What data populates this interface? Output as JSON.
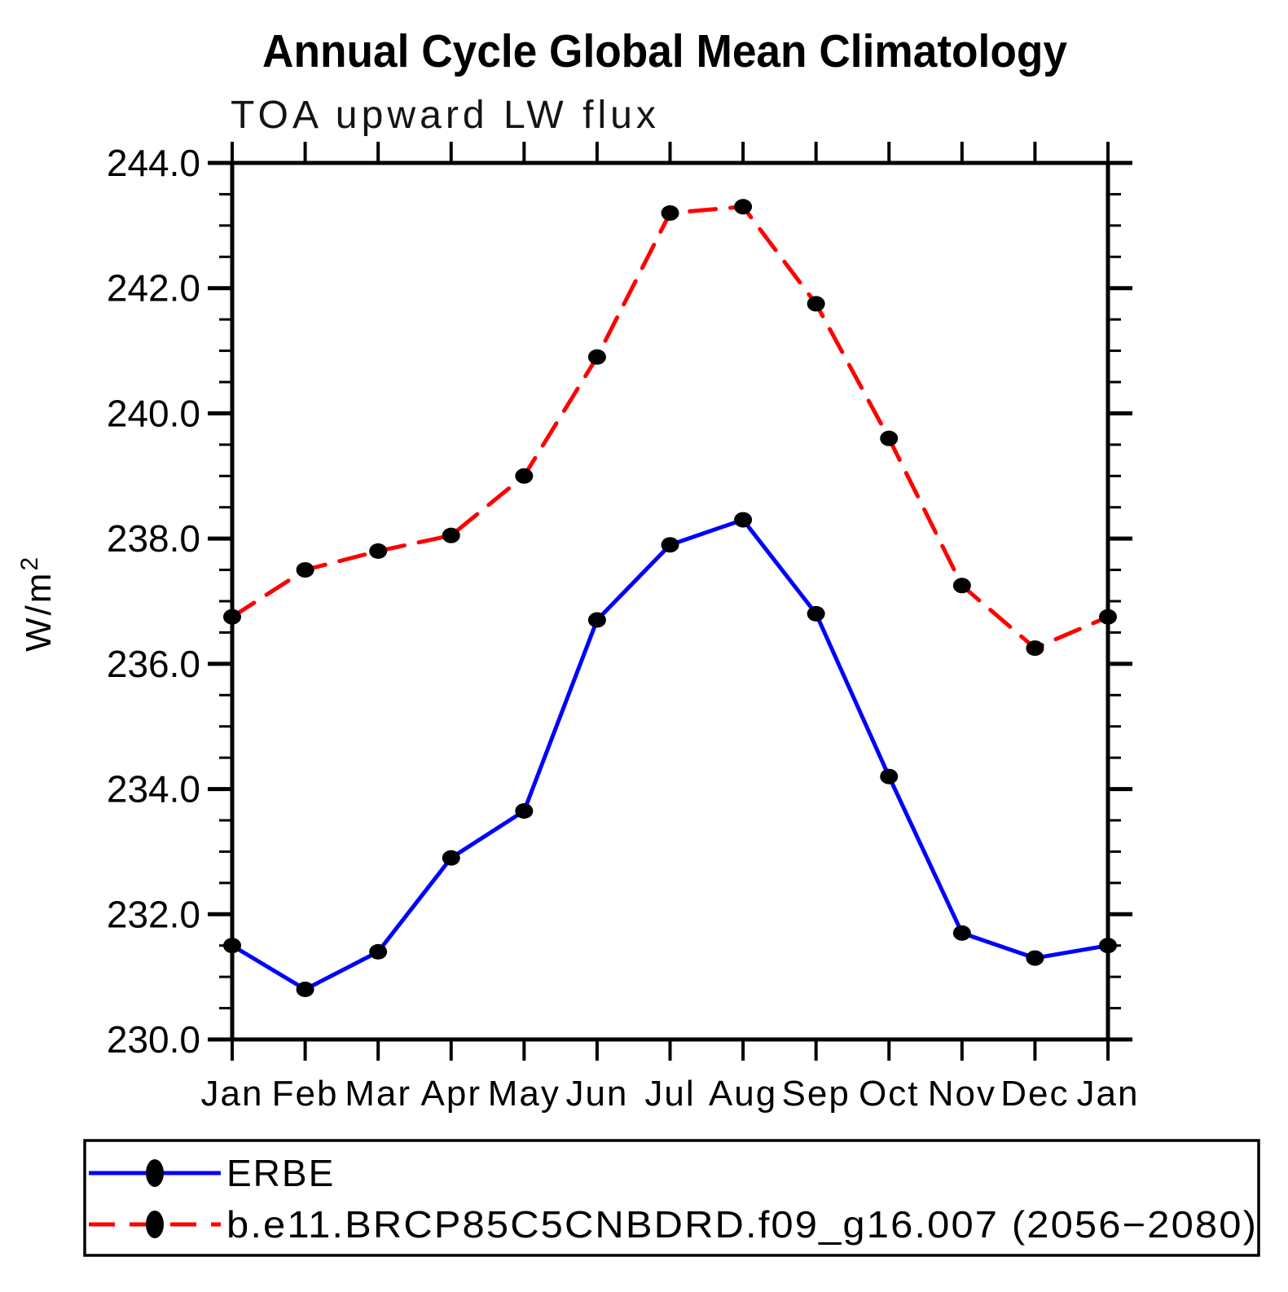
{
  "header": {
    "title": "Annual Cycle Global Mean Climatology",
    "subtitle": "TOA upward LW flux"
  },
  "axes": {
    "y": {
      "unit_base": "W/m",
      "unit_exponent": "2",
      "tick_labels": [
        "244.0",
        "242.0",
        "240.0",
        "238.0",
        "236.0",
        "234.0",
        "232.0",
        "230.0"
      ]
    },
    "x": {
      "tick_labels": [
        "Jan",
        "Feb",
        "Mar",
        "Apr",
        "May",
        "Jun",
        "Jul",
        "Aug",
        "Sep",
        "Oct",
        "Nov",
        "Dec",
        "Jan"
      ]
    }
  },
  "legend": {
    "entries": [
      {
        "label": "ERBE",
        "line_style": "solid",
        "color": "#0000ff",
        "marker_color": "#000000"
      },
      {
        "label": "b.e11.BRCP85C5CNBDRD.f09_g16.007 (2056−2080)",
        "line_style": "dashed",
        "color": "#ff0000",
        "marker_color": "#000000"
      }
    ]
  },
  "colors": {
    "axis": "#000000",
    "background": "#ffffff",
    "erbe_line": "#0000ff",
    "model_line": "#ff0000",
    "marker": "#000000"
  },
  "chart_data": {
    "type": "line",
    "title": "Annual Cycle Global Mean Climatology",
    "subtitle": "TOA upward LW flux",
    "ylabel": "W/m²",
    "xlabel": "",
    "x_categories": [
      "Jan",
      "Feb",
      "Mar",
      "Apr",
      "May",
      "Jun",
      "Jul",
      "Aug",
      "Sep",
      "Oct",
      "Nov",
      "Dec",
      "Jan"
    ],
    "ylim": [
      230.0,
      244.0
    ],
    "ytick_major_interval": 2.0,
    "ytick_minor_interval": 0.5,
    "ytick_labels": [
      "244.0",
      "242.0",
      "240.0",
      "238.0",
      "236.0",
      "234.0",
      "232.0",
      "230.0"
    ],
    "grid": false,
    "legend_position": "bottom-left-box",
    "series": [
      {
        "name": "ERBE",
        "color": "#0000ff",
        "style": "solid",
        "marker": "filled-circle",
        "marker_color": "#000000",
        "values": [
          231.5,
          230.8,
          231.4,
          232.9,
          233.65,
          236.7,
          237.9,
          238.3,
          236.8,
          234.2,
          231.7,
          231.3,
          231.5
        ]
      },
      {
        "name": "b.e11.BRCP85C5CNBDRD.f09_g16.007 (2056−2080)",
        "color": "#ff0000",
        "style": "dashed",
        "marker": "filled-circle",
        "marker_color": "#000000",
        "values": [
          236.75,
          237.5,
          237.8,
          238.05,
          239.0,
          240.9,
          243.2,
          243.3,
          241.75,
          239.6,
          237.25,
          236.25,
          236.75
        ]
      }
    ]
  }
}
